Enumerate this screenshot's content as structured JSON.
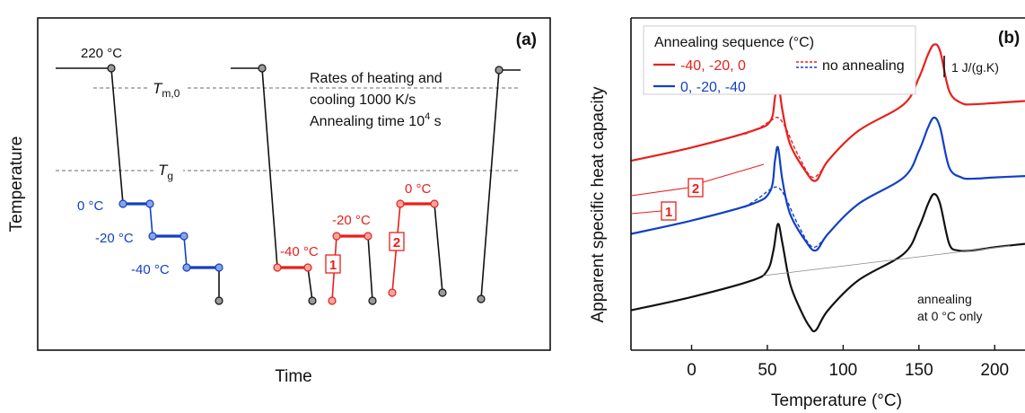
{
  "colors": {
    "black": "#111111",
    "blue": "#1240c4",
    "red": "#e8201b",
    "grey": "#888888",
    "dot_grey": "#9a9a9a",
    "dot_blue": "#8aa2e6",
    "dot_red": "#f2a6a0"
  },
  "chart_data": [
    {
      "type": "line",
      "panel_label": "(a)",
      "xlabel": "Time",
      "ylabel": "Temperature",
      "reference_lines": [
        {
          "label_main": "T",
          "label_sub": "m,0"
        },
        {
          "label_main": "T",
          "label_sub": "g"
        }
      ],
      "annotation": {
        "line1": "Rates of heating and",
        "line2": "cooling 1000 K/s",
        "line3_main": "Annealing time 10",
        "line3_sup": "4",
        "line3_tail": " s"
      },
      "start_temperature_label": "220 °C",
      "series": [
        {
          "color": "blue",
          "steps": [
            {
              "label": "0 °C",
              "temperature_c": 0
            },
            {
              "label": "-20 °C",
              "temperature_c": -20
            },
            {
              "label": "-40 °C",
              "temperature_c": -40
            }
          ]
        },
        {
          "color": "red",
          "steps": [
            {
              "label": "-40 °C",
              "temperature_c": -40
            },
            {
              "label": "-20 °C",
              "temperature_c": -20
            },
            {
              "label": "0 °C",
              "temperature_c": 0
            }
          ]
        }
      ],
      "markers": [
        "1",
        "2"
      ]
    },
    {
      "type": "line",
      "panel_label": "(b)",
      "xlabel": "Temperature (°C)",
      "ylabel": "Apparent specific heat capacity",
      "xlim": [
        -40,
        220
      ],
      "xticks": [
        0,
        50,
        100,
        150,
        200
      ],
      "scale_bar_label": "1 J/(g.K)",
      "legend": {
        "title": "Annealing sequence (°C)",
        "entries": [
          {
            "label": "-40, -20, 0",
            "color": "red",
            "style": "solid"
          },
          {
            "label": "0, -20, -40",
            "color": "blue",
            "style": "solid"
          },
          {
            "label": "no annealing",
            "color": "blue",
            "style": "dashed"
          }
        ]
      },
      "annotation": {
        "line1": "annealing",
        "line2": "at 0 °C only"
      },
      "markers": [
        "2",
        "1"
      ],
      "series": [
        {
          "name": "-40, -20, 0",
          "color": "red",
          "style": "solid",
          "x": [
            -40,
            0,
            40,
            52,
            55,
            57,
            60,
            65,
            75,
            82,
            90,
            110,
            140,
            150,
            156,
            160,
            164,
            170,
            178,
            185,
            200,
            220
          ],
          "y": [
            2.85,
            3.05,
            3.3,
            3.45,
            3.8,
            4.05,
            3.6,
            3.1,
            2.7,
            2.55,
            2.85,
            3.3,
            3.7,
            4.1,
            4.45,
            4.6,
            4.5,
            3.9,
            3.72,
            3.7,
            3.72,
            3.75
          ]
        },
        {
          "name": "no annealing",
          "color": "red",
          "style": "dashed",
          "x": [
            35,
            45,
            52,
            57,
            62,
            70,
            80,
            90
          ],
          "y": [
            3.25,
            3.35,
            3.45,
            3.5,
            3.35,
            2.95,
            2.6,
            2.85
          ]
        },
        {
          "name": "0, -20, -40",
          "color": "blue",
          "style": "solid",
          "x": [
            -40,
            0,
            40,
            52,
            55,
            57,
            60,
            65,
            75,
            82,
            90,
            110,
            140,
            150,
            156,
            160,
            164,
            170,
            178,
            185,
            200,
            220
          ],
          "y": [
            1.75,
            1.95,
            2.2,
            2.4,
            2.85,
            3.05,
            2.55,
            2.05,
            1.65,
            1.5,
            1.75,
            2.2,
            2.6,
            3.0,
            3.35,
            3.5,
            3.35,
            2.75,
            2.6,
            2.58,
            2.6,
            2.62
          ]
        },
        {
          "name": "no annealing",
          "color": "blue",
          "style": "dashed",
          "x": [
            35,
            45,
            52,
            57,
            62,
            70,
            80,
            90
          ],
          "y": [
            2.15,
            2.3,
            2.42,
            2.45,
            2.3,
            1.9,
            1.55,
            1.75
          ]
        },
        {
          "name": "annealing at 0 °C only",
          "color": "black",
          "style": "solid",
          "x": [
            -40,
            0,
            40,
            50,
            54,
            57,
            60,
            65,
            72,
            78,
            82,
            90,
            110,
            140,
            150,
            156,
            160,
            164,
            170,
            176,
            185,
            200,
            220
          ],
          "y": [
            0.6,
            0.8,
            1.05,
            1.2,
            1.5,
            1.9,
            1.6,
            1.0,
            0.6,
            0.35,
            0.3,
            0.6,
            1.05,
            1.45,
            1.85,
            2.2,
            2.35,
            2.2,
            1.6,
            1.5,
            1.5,
            1.55,
            1.6
          ]
        },
        {
          "name": "baseline",
          "color": "grey",
          "style": "thin",
          "x": [
            47,
            210
          ],
          "y": [
            1.12,
            1.57
          ]
        }
      ]
    }
  ]
}
